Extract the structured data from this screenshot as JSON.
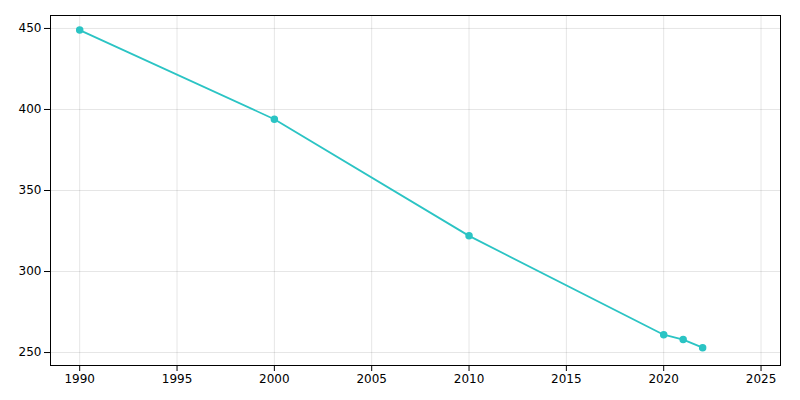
{
  "chart_data": {
    "type": "line",
    "x": [
      1990,
      2000,
      2010,
      2020,
      2021,
      2022
    ],
    "values": [
      449,
      394,
      322,
      261,
      258,
      253
    ],
    "color": "#2bc4c4",
    "marker": "circle",
    "xlim": [
      1988.5,
      2026
    ],
    "ylim": [
      242,
      458
    ],
    "xticks": [
      1990,
      1995,
      2000,
      2005,
      2010,
      2015,
      2020,
      2025
    ],
    "yticks": [
      250,
      300,
      350,
      400,
      450
    ],
    "grid": true
  }
}
